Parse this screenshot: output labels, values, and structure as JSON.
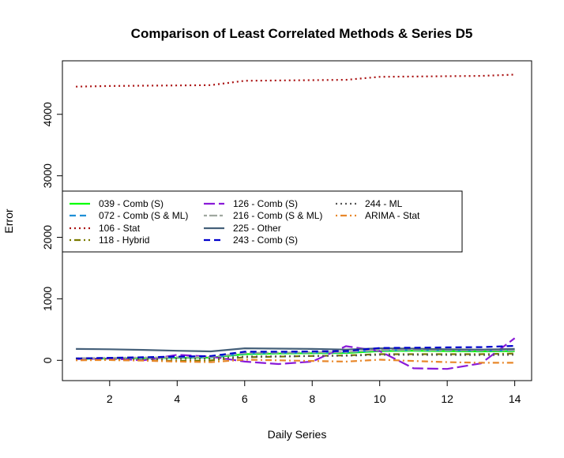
{
  "chart_data": {
    "type": "line",
    "title": "Comparison of Least Correlated Methods & Series D5",
    "xlabel": "Daily Series",
    "ylabel": "Error",
    "xlim": [
      0.6,
      14.5
    ],
    "ylim": [
      -330,
      4870
    ],
    "x_ticks": [
      2,
      4,
      6,
      8,
      10,
      12,
      14
    ],
    "y_ticks": [
      0,
      1000,
      2000,
      3000,
      4000
    ],
    "grid": false,
    "legend_position": "center-left",
    "x": [
      1,
      2,
      3,
      4,
      5,
      6,
      7,
      8,
      9,
      10,
      11,
      12,
      13,
      14
    ],
    "series": [
      {
        "name": "039 - Comb (S)",
        "color": "#00ff00",
        "dash": "solid",
        "values": [
          25,
          30,
          35,
          40,
          45,
          100,
          110,
          115,
          120,
          150,
          155,
          150,
          145,
          150
        ]
      },
      {
        "name": "072 - Comb (S & ML)",
        "color": "#1e8fd6",
        "dash": "dashed",
        "values": [
          30,
          35,
          40,
          45,
          50,
          110,
          120,
          125,
          130,
          160,
          165,
          160,
          155,
          160
        ]
      },
      {
        "name": "106 - Stat",
        "color": "#aa1111",
        "dash": "dotted",
        "values": [
          4450,
          4460,
          4465,
          4470,
          4475,
          4545,
          4550,
          4555,
          4560,
          4610,
          4615,
          4620,
          4625,
          4645
        ]
      },
      {
        "name": "118 - Hybrid",
        "color": "#7a7a00",
        "dash": "dotdash",
        "values": [
          15,
          5,
          0,
          -10,
          0,
          50,
          60,
          70,
          80,
          100,
          100,
          100,
          100,
          110
        ]
      },
      {
        "name": "126 - Comb (S)",
        "color": "#8a1ad8",
        "dash": "longdash",
        "values": [
          20,
          30,
          0,
          90,
          60,
          -20,
          -60,
          -20,
          230,
          150,
          -130,
          -140,
          -50,
          360
        ]
      },
      {
        "name": "216 - Comb (S & ML)",
        "color": "#a0a8a0",
        "dash": "twodash",
        "values": [
          35,
          40,
          45,
          50,
          55,
          120,
          125,
          130,
          135,
          170,
          170,
          165,
          160,
          165
        ]
      },
      {
        "name": "225 - Other",
        "color": "#45607a",
        "dash": "solid",
        "values": [
          185,
          180,
          170,
          155,
          145,
          195,
          190,
          185,
          175,
          195,
          190,
          180,
          175,
          185
        ]
      },
      {
        "name": "243 - Comb (S)",
        "color": "#0000cc",
        "dash": "dashed",
        "values": [
          30,
          40,
          50,
          60,
          70,
          140,
          140,
          145,
          150,
          200,
          205,
          210,
          215,
          235
        ]
      },
      {
        "name": "244 - ML",
        "color": "#555555",
        "dash": "dotted",
        "values": [
          10,
          15,
          20,
          25,
          30,
          60,
          65,
          70,
          75,
          90,
          90,
          88,
          86,
          90
        ]
      },
      {
        "name": "ARIMA - Stat",
        "color": "#e8872a",
        "dash": "dotdash",
        "values": [
          0,
          5,
          -5,
          -20,
          -30,
          10,
          0,
          -10,
          -20,
          10,
          -10,
          -30,
          -40,
          -40
        ]
      }
    ]
  }
}
